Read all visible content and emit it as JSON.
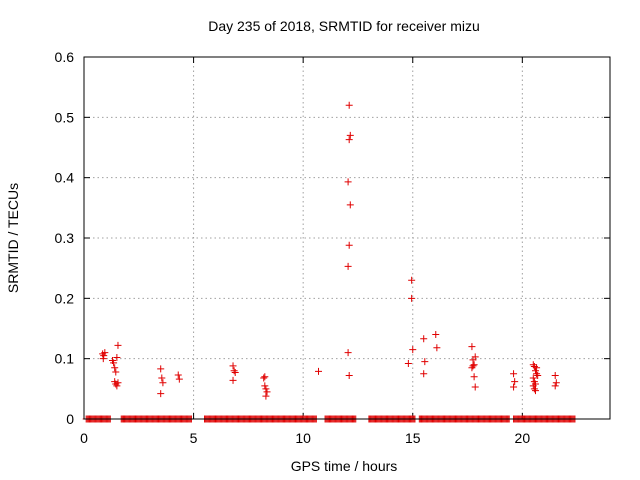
{
  "chart_data": {
    "type": "scatter",
    "title": "Day 235 of 2018, SRMTID for receiver mizu",
    "xlabel": "GPS time / hours",
    "ylabel": "SRMTID / TECUs",
    "xlim": [
      0,
      24
    ],
    "ylim": [
      0,
      0.6
    ],
    "xticks": [
      0,
      5,
      10,
      15,
      20
    ],
    "xtick_labels": [
      "0",
      "5",
      "10",
      "15",
      "20"
    ],
    "yticks": [
      0,
      0.1,
      0.2,
      0.3,
      0.4,
      0.5,
      0.6
    ],
    "ytick_labels": [
      "0",
      "0.1",
      "0.2",
      "0.3",
      "0.4",
      "0.5",
      "0.6"
    ],
    "grid": true,
    "marker": "+",
    "series": [
      {
        "name": "SRMTID",
        "color": "#e00000",
        "points": [
          [
            0.85,
            0.108
          ],
          [
            0.9,
            0.105
          ],
          [
            0.95,
            0.11
          ],
          [
            0.88,
            0.1
          ],
          [
            1.3,
            0.097
          ],
          [
            1.35,
            0.093
          ],
          [
            1.4,
            0.085
          ],
          [
            1.45,
            0.078
          ],
          [
            1.5,
            0.102
          ],
          [
            1.55,
            0.122
          ],
          [
            1.4,
            0.062
          ],
          [
            1.45,
            0.058
          ],
          [
            1.5,
            0.055
          ],
          [
            1.55,
            0.06
          ],
          [
            3.5,
            0.083
          ],
          [
            3.55,
            0.068
          ],
          [
            3.6,
            0.06
          ],
          [
            3.5,
            0.042
          ],
          [
            4.3,
            0.073
          ],
          [
            4.35,
            0.066
          ],
          [
            6.8,
            0.088
          ],
          [
            6.85,
            0.08
          ],
          [
            6.9,
            0.077
          ],
          [
            6.8,
            0.064
          ],
          [
            8.2,
            0.068
          ],
          [
            8.25,
            0.055
          ],
          [
            8.3,
            0.05
          ],
          [
            8.35,
            0.045
          ],
          [
            8.3,
            0.038
          ],
          [
            8.25,
            0.07
          ],
          [
            10.7,
            0.079
          ],
          [
            12.1,
            0.52
          ],
          [
            12.15,
            0.47
          ],
          [
            12.1,
            0.463
          ],
          [
            12.05,
            0.393
          ],
          [
            12.15,
            0.355
          ],
          [
            12.1,
            0.288
          ],
          [
            12.05,
            0.253
          ],
          [
            12.05,
            0.11
          ],
          [
            12.1,
            0.072
          ],
          [
            14.8,
            0.092
          ],
          [
            14.95,
            0.23
          ],
          [
            14.95,
            0.2
          ],
          [
            15.0,
            0.115
          ],
          [
            15.5,
            0.133
          ],
          [
            15.55,
            0.095
          ],
          [
            15.5,
            0.075
          ],
          [
            16.05,
            0.14
          ],
          [
            16.1,
            0.118
          ],
          [
            17.7,
            0.12
          ],
          [
            17.75,
            0.098
          ],
          [
            17.8,
            0.09
          ],
          [
            17.7,
            0.085
          ],
          [
            17.85,
            0.103
          ],
          [
            17.8,
            0.07
          ],
          [
            17.85,
            0.053
          ],
          [
            17.75,
            0.088
          ],
          [
            19.6,
            0.075
          ],
          [
            19.65,
            0.062
          ],
          [
            19.6,
            0.053
          ],
          [
            20.5,
            0.09
          ],
          [
            20.55,
            0.087
          ],
          [
            20.6,
            0.08
          ],
          [
            20.65,
            0.075
          ],
          [
            20.5,
            0.068
          ],
          [
            20.55,
            0.062
          ],
          [
            20.6,
            0.058
          ],
          [
            20.5,
            0.055
          ],
          [
            20.55,
            0.05
          ],
          [
            20.6,
            0.047
          ],
          [
            20.7,
            0.072
          ],
          [
            20.65,
            0.085
          ],
          [
            21.5,
            0.072
          ],
          [
            21.55,
            0.06
          ],
          [
            21.5,
            0.055
          ]
        ],
        "zero_segments": [
          [
            0.1,
            1.2
          ],
          [
            1.7,
            4.9
          ],
          [
            5.5,
            10.6
          ],
          [
            11.0,
            12.4
          ],
          [
            13.0,
            15.1
          ],
          [
            15.3,
            19.4
          ],
          [
            19.6,
            22.4
          ]
        ]
      }
    ]
  }
}
